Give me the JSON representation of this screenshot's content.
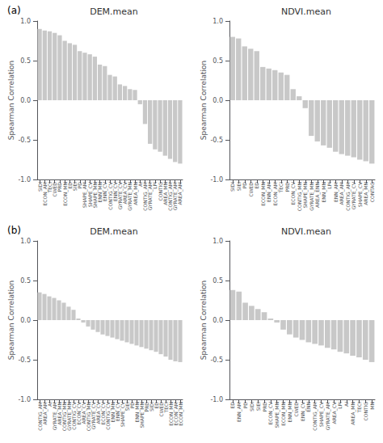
{
  "chart_data": [
    {
      "type": "bar",
      "title": "DEM.mean",
      "annotations": [
        "(a)"
      ],
      "categories": [
        "SIDI",
        "ECON_AM",
        "TECI",
        "CWED",
        "PRD",
        "ECON_MN",
        "ED",
        "SIEI",
        "PD",
        "SHAPE_AM",
        "SHAPE_CV",
        "SHAPE_MN",
        "ENN_MN",
        "ENN_CV",
        "CONTIG_CV",
        "ENN_CV",
        "GYRATE_CV",
        "AREA_CV",
        "GYRATE_MN",
        "AREA_MN",
        "AI",
        "CONTIG_AM",
        "GYRATE_AM",
        "LPI",
        "CONTIG",
        "AREA_MN",
        "CONTIG_AM",
        "GYRATE_AM",
        "AREA_AM"
      ],
      "values": [
        0.9,
        0.88,
        0.87,
        0.85,
        0.82,
        0.75,
        0.72,
        0.7,
        0.62,
        0.6,
        0.58,
        0.55,
        0.45,
        0.43,
        0.32,
        0.3,
        0.2,
        0.18,
        0.14,
        0.13,
        -0.05,
        -0.3,
        -0.55,
        -0.62,
        -0.65,
        -0.7,
        -0.74,
        -0.78,
        -0.8
      ],
      "color": "#c8c8c8",
      "ylabel": "Spearman Correlation",
      "ylim": [
        -1.0,
        1.0
      ],
      "yticks": [
        {
          "value": -1.0,
          "label": "-1.0"
        },
        -0.5,
        {
          "value": 0.0,
          "label": "0.0"
        },
        0.5,
        {
          "value": 1.0,
          "label": "1.0"
        }
      ],
      "grid": false
    },
    {
      "type": "bar",
      "title": "NDVI.mean",
      "categories": [
        "SIDI",
        "SIEI",
        "PD",
        "CWED",
        "ED",
        "ECON_MN",
        "ENN_AM",
        "ECON_AM",
        "TECI",
        "PRD",
        "ECON_CV",
        "CONTIG_MN",
        "SHAPE_MN",
        "GYRATE_MN",
        "AREA_ENN",
        "ENN_MN",
        "LPI",
        "ENN_AM",
        "AREA_AM",
        "CONTIG_AM",
        "GYRATE_CV",
        "SHAPE_CV",
        "AREA_MN",
        "CONTAG"
      ],
      "values": [
        0.8,
        0.78,
        0.68,
        0.65,
        0.62,
        0.42,
        0.4,
        0.38,
        0.35,
        0.32,
        0.14,
        0.05,
        -0.1,
        -0.45,
        -0.52,
        -0.57,
        -0.6,
        -0.65,
        -0.68,
        -0.7,
        -0.72,
        -0.75,
        -0.77,
        -0.8
      ],
      "color": "#c8c8c8",
      "ylabel": "Spearman Correlation",
      "ylim": [
        -1.0,
        1.0
      ],
      "yticks": [
        {
          "value": -1.0,
          "label": "-1.0"
        },
        -0.5,
        {
          "value": 0.0,
          "label": "0.0"
        },
        0.5,
        {
          "value": 1.0,
          "label": "1.0"
        }
      ],
      "grid": false
    },
    {
      "type": "bar",
      "title": "DEM.mean",
      "annotations": [
        "(b)"
      ],
      "categories": [
        "CONTIG_AM",
        "AREA_AM",
        "AI",
        "GYRATE_AM",
        "AREA_MN",
        "CONTIG_MN",
        "GYRATE_MN",
        "CONTIG_CV",
        "ECON_CV",
        "AREA_CV",
        "CONTIG_MN",
        "GYRATE_CV",
        "AREA_CV",
        "ECON_CV",
        "CONTIG_CV",
        "ENN_MN",
        "ENN_CV",
        "SHAPE_CV",
        "SIEI",
        "PD",
        "ENN_MN",
        "SHAPE_MN",
        "PRD",
        "SIDI",
        "ED",
        "CWED",
        "TECI",
        "ECON_MN",
        "ECON_AM",
        "ECON_MN"
      ],
      "values": [
        0.35,
        0.33,
        0.3,
        0.28,
        0.25,
        0.22,
        0.17,
        0.13,
        0.02,
        -0.03,
        -0.08,
        -0.12,
        -0.15,
        -0.18,
        -0.2,
        -0.22,
        -0.24,
        -0.26,
        -0.28,
        -0.3,
        -0.32,
        -0.34,
        -0.36,
        -0.38,
        -0.4,
        -0.43,
        -0.46,
        -0.5,
        -0.52,
        -0.53
      ],
      "color": "#c8c8c8",
      "ylabel": "Spearman Correlation",
      "ylim": [
        -1.0,
        1.0
      ],
      "yticks": [
        {
          "value": -1.0,
          "label": "-1.0"
        },
        -0.5,
        {
          "value": 0.0,
          "label": "0.0"
        },
        0.5,
        {
          "value": 1.0,
          "label": "1.0"
        }
      ],
      "grid": false
    },
    {
      "type": "bar",
      "title": "NDVI.mean",
      "categories": [
        "ED",
        "ENN_AM",
        "PD",
        "SIDI",
        "SIEI",
        "PRD",
        "ECON_CV",
        "SHAPE_MN",
        "ECON_MN",
        "ENN_MN",
        "CWED",
        "ENN_CV",
        "ENN",
        "CONTIG_AM",
        "SHAPE_CV",
        "GYRATE_AM",
        "AREA_CV",
        "LPI",
        "AI",
        "AREA_MN",
        "TECI",
        "CONTIG",
        "MN"
      ],
      "values": [
        0.38,
        0.36,
        0.22,
        0.18,
        0.14,
        0.1,
        0.02,
        -0.03,
        -0.12,
        -0.18,
        -0.22,
        -0.25,
        -0.28,
        -0.3,
        -0.32,
        -0.35,
        -0.37,
        -0.4,
        -0.42,
        -0.45,
        -0.47,
        -0.5,
        -0.53
      ],
      "color": "#c8c8c8",
      "ylabel": "Spearman Correlation",
      "ylim": [
        -1.0,
        1.0
      ],
      "yticks": [
        {
          "value": -1.0,
          "label": "-1.0"
        },
        -0.5,
        {
          "value": 0.0,
          "label": "0.0"
        },
        0.5,
        {
          "value": 1.0,
          "label": "1.0"
        }
      ],
      "grid": false
    }
  ]
}
